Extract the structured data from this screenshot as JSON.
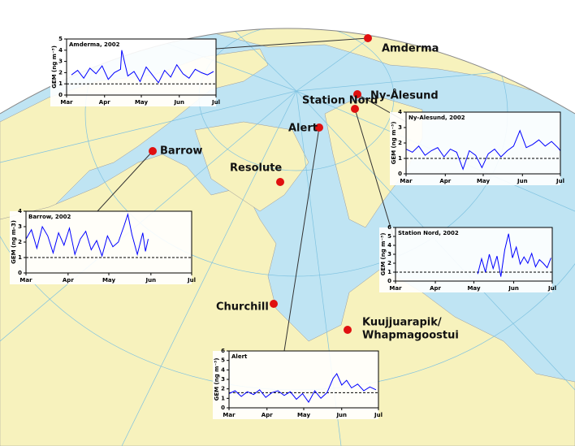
{
  "map": {
    "stations": [
      {
        "lines": [
          "Amderma"
        ]
      },
      {
        "lines": [
          "Ny-Ålesund"
        ]
      },
      {
        "lines": [
          "Station Nord"
        ]
      },
      {
        "lines": [
          "Alert"
        ]
      },
      {
        "lines": [
          "Barrow"
        ]
      },
      {
        "lines": [
          "Resolute"
        ]
      },
      {
        "lines": [
          "Churchill"
        ]
      },
      {
        "lines": [
          "Kuujjuarapik/",
          "Whapmagoostui"
        ]
      }
    ]
  },
  "chart_data": [
    {
      "type": "line",
      "title": "Amderma, 2002",
      "y_label": "GEM (ng m⁻³)",
      "color": "#0000ff",
      "xlim": [
        0,
        122
      ],
      "xticks": [
        {
          "value": 0,
          "label": "Mar"
        },
        {
          "value": 31,
          "label": "Apr"
        },
        {
          "value": 61,
          "label": "May"
        },
        {
          "value": 92,
          "label": "Jun"
        },
        {
          "value": 122,
          "label": "Jul"
        }
      ],
      "ylim": [
        0,
        5
      ],
      "yticks": [
        0,
        1,
        2,
        3,
        4,
        5
      ],
      "hline": 1,
      "x": [
        4,
        9,
        14,
        19,
        24,
        29,
        34,
        39,
        44,
        45,
        50,
        55,
        60,
        65,
        70,
        75,
        80,
        85,
        90,
        95,
        100,
        105,
        110,
        115,
        120
      ],
      "values": [
        1.8,
        2.2,
        1.5,
        2.4,
        1.9,
        2.6,
        1.4,
        2.0,
        2.3,
        4.0,
        1.7,
        2.1,
        1.2,
        2.5,
        1.8,
        1.1,
        2.2,
        1.6,
        2.7,
        1.9,
        1.5,
        2.3,
        2.0,
        1.8,
        2.1
      ]
    },
    {
      "type": "line",
      "title": "Ny-Alesund, 2002",
      "y_label": "GEM (ng m⁻³)",
      "color": "#0000ff",
      "xlim": [
        0,
        122
      ],
      "xticks": [
        {
          "value": 0,
          "label": "Mar"
        },
        {
          "value": 31,
          "label": "Apr"
        },
        {
          "value": 61,
          "label": "May"
        },
        {
          "value": 92,
          "label": "Jun"
        },
        {
          "value": 122,
          "label": "Jul"
        }
      ],
      "ylim": [
        0,
        4
      ],
      "yticks": [
        0,
        1,
        2,
        3,
        4
      ],
      "hline": 1,
      "x": [
        0,
        5,
        10,
        15,
        20,
        25,
        30,
        35,
        40,
        45,
        50,
        55,
        60,
        65,
        70,
        75,
        80,
        85,
        90,
        95,
        100,
        105,
        110,
        115,
        120,
        122
      ],
      "values": [
        1.6,
        1.4,
        1.8,
        1.2,
        1.5,
        1.7,
        1.1,
        1.6,
        1.4,
        0.3,
        1.5,
        1.2,
        0.4,
        1.3,
        1.6,
        1.1,
        1.5,
        1.8,
        2.8,
        1.7,
        1.9,
        2.2,
        1.8,
        2.1,
        1.7,
        1.5
      ]
    },
    {
      "type": "line",
      "title": "Barrow, 2002",
      "y_label": "GEM (ng m-3)",
      "color": "#0000ff",
      "xlim": [
        0,
        122
      ],
      "xticks": [
        {
          "value": 0,
          "label": "Mar"
        },
        {
          "value": 31,
          "label": "Apr"
        },
        {
          "value": 61,
          "label": "May"
        },
        {
          "value": 92,
          "label": "Jun"
        },
        {
          "value": 122,
          "label": "Jul"
        }
      ],
      "ylim": [
        0,
        4
      ],
      "yticks": [
        0,
        1,
        2,
        3,
        4
      ],
      "hline": 1,
      "x": [
        0,
        4,
        8,
        12,
        16,
        20,
        24,
        28,
        32,
        36,
        40,
        44,
        48,
        52,
        56,
        60,
        64,
        68,
        72,
        75,
        78,
        82,
        86,
        88,
        90
      ],
      "values": [
        2.2,
        2.8,
        1.6,
        3.0,
        2.4,
        1.3,
        2.6,
        1.8,
        2.9,
        1.2,
        2.2,
        2.7,
        1.5,
        2.1,
        1.1,
        2.4,
        1.7,
        2.0,
        3.0,
        3.8,
        2.5,
        1.2,
        2.6,
        1.4,
        2.2
      ]
    },
    {
      "type": "line",
      "title": "Station Nord, 2002",
      "y_label": "GEM (ng m⁻³)",
      "color": "#0000ff",
      "xlim": [
        0,
        122
      ],
      "xticks": [
        {
          "value": 0,
          "label": "Mar"
        },
        {
          "value": 31,
          "label": "Apr"
        },
        {
          "value": 61,
          "label": "May"
        },
        {
          "value": 92,
          "label": "Jun"
        },
        {
          "value": 122,
          "label": "Jul"
        }
      ],
      "ylim": [
        0,
        6
      ],
      "yticks": [
        0,
        1,
        2,
        3,
        4,
        5,
        6
      ],
      "hline": 1,
      "x": [
        64,
        67,
        70,
        73,
        76,
        79,
        82,
        85,
        88,
        91,
        94,
        97,
        100,
        103,
        106,
        109,
        112,
        115,
        118,
        121
      ],
      "values": [
        0.8,
        2.5,
        1.0,
        3.0,
        1.4,
        2.8,
        0.5,
        3.5,
        5.3,
        2.6,
        3.8,
        1.9,
        2.7,
        2.0,
        3.1,
        1.6,
        2.4,
        2.0,
        1.5,
        2.6
      ]
    },
    {
      "type": "line",
      "title": "Alert",
      "y_label": "GEM (ng m⁻³)",
      "color": "#0000ff",
      "xlim": [
        0,
        122
      ],
      "xticks": [
        {
          "value": 0,
          "label": "Mar"
        },
        {
          "value": 31,
          "label": "Apr"
        },
        {
          "value": 61,
          "label": "May"
        },
        {
          "value": 92,
          "label": "Jun"
        },
        {
          "value": 122,
          "label": "Jul"
        }
      ],
      "ylim": [
        0,
        6
      ],
      "yticks": [
        0,
        1,
        2,
        3,
        4,
        5,
        6
      ],
      "hline": 1.6,
      "x": [
        0,
        5,
        10,
        15,
        20,
        25,
        30,
        35,
        40,
        45,
        50,
        55,
        60,
        65,
        70,
        75,
        80,
        85,
        88,
        92,
        96,
        100,
        105,
        110,
        115,
        120
      ],
      "values": [
        1.5,
        1.8,
        1.2,
        1.7,
        1.4,
        1.9,
        1.1,
        1.6,
        1.8,
        1.3,
        1.7,
        0.9,
        1.5,
        0.6,
        1.8,
        1.0,
        1.6,
        3.1,
        3.6,
        2.4,
        2.9,
        2.1,
        2.5,
        1.8,
        2.2,
        1.9
      ]
    }
  ]
}
